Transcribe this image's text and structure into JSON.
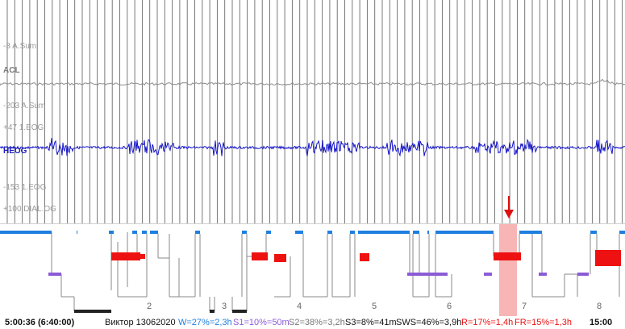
{
  "channels": [
    {
      "scale_label": "-3 A.Sum",
      "name": ""
    },
    {
      "scale_label": "",
      "name": "ACL"
    },
    {
      "scale_label": "-203 A.Sum",
      "name": ""
    },
    {
      "scale_label": "+47 1.EOG",
      "name": ""
    },
    {
      "scale_label": "",
      "name": "HEOG"
    },
    {
      "scale_label": "-153 1.EOG",
      "name": ""
    },
    {
      "scale_label": "+100 DIAL.OG",
      "name": ""
    }
  ],
  "hypnogram": {
    "hour_labels": [
      "2",
      "3",
      "4",
      "5",
      "6",
      "7",
      "8"
    ],
    "marker_time": "5:00:36 (6:40:00)",
    "end_time": "15:00",
    "colors": {
      "wake": "#1f7fe0",
      "rem": "#ee1111",
      "s1": "#8b5cd6",
      "deep": "#222222",
      "line": "#8a8a8a",
      "highlight": "#f7b5b5"
    }
  },
  "status": {
    "time": "5:00:36 (6:40:00)",
    "patient": "Виктор 13062020",
    "w": "W=27%=2,3h",
    "s1": "S1=10%=50m",
    "s2": "S2=38%=3,2h",
    "s3": "S3=8%=41m",
    "sws": "SWS=46%=3,9h",
    "r": "R=17%=1,4h",
    "fr": "FR=15%=1,3h",
    "end": "15:00"
  },
  "colors": {
    "eog": "#1414c8",
    "acl": "#8c8c8c",
    "grid": "#666666"
  }
}
